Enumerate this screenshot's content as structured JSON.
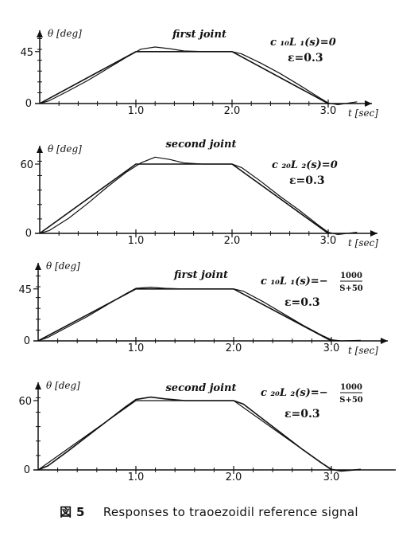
{
  "figure_caption": {
    "label": "図 5",
    "text": "Responses to traoezoidil reference signal"
  },
  "chart_data": [
    {
      "type": "line",
      "title": "first joint",
      "ylabel": "θ [deg]",
      "xlabel": "t [sec]",
      "annotation": {
        "lhs": "c ₁₀L ₁(s)=0",
        "numerator": "",
        "denominator": "",
        "epsilon": "ε=0.3"
      },
      "x_ticks": [
        "1.0",
        "2.0",
        "3.0"
      ],
      "y_ticks": [
        "0",
        "45"
      ],
      "xlim": [
        0,
        3.3
      ],
      "ylim": [
        0,
        60
      ],
      "ymax_tick": 45,
      "series": [
        {
          "values": [
            [
              0,
              0
            ],
            [
              1.0,
              45
            ],
            [
              2.0,
              45
            ],
            [
              3.0,
              0
            ]
          ]
        },
        {
          "values": [
            [
              0,
              0
            ],
            [
              0.1,
              2.5
            ],
            [
              0.3,
              11
            ],
            [
              0.5,
              20
            ],
            [
              0.7,
              30
            ],
            [
              0.9,
              40
            ],
            [
              1.05,
              47
            ],
            [
              1.2,
              49
            ],
            [
              1.35,
              47.5
            ],
            [
              1.5,
              45.5
            ],
            [
              1.7,
              45
            ],
            [
              2.0,
              45
            ],
            [
              2.1,
              43
            ],
            [
              2.3,
              35
            ],
            [
              2.5,
              26
            ],
            [
              2.7,
              16
            ],
            [
              2.9,
              5.5
            ],
            [
              3.0,
              0.5
            ],
            [
              3.1,
              -1
            ],
            [
              3.3,
              1.5
            ]
          ]
        }
      ]
    },
    {
      "type": "line",
      "title": "second joint",
      "ylabel": "θ [deg]",
      "xlabel": "t [sec]",
      "annotation": {
        "lhs": "c ₂₀L ₂(s)=0",
        "numerator": "",
        "denominator": "",
        "epsilon": "ε=0.3"
      },
      "x_ticks": [
        "1.0",
        "2.0",
        "3.0"
      ],
      "y_ticks": [
        "0",
        "60"
      ],
      "xlim": [
        0,
        3.3
      ],
      "ylim": [
        0,
        80
      ],
      "ymax_tick": 60,
      "series": [
        {
          "values": [
            [
              0,
              0
            ],
            [
              1.0,
              60
            ],
            [
              2.0,
              60
            ],
            [
              3.0,
              0
            ]
          ]
        },
        {
          "values": [
            [
              0,
              0
            ],
            [
              0.1,
              2.5
            ],
            [
              0.3,
              13
            ],
            [
              0.5,
              26
            ],
            [
              0.7,
              40
            ],
            [
              0.9,
              53
            ],
            [
              1.05,
              61
            ],
            [
              1.2,
              66
            ],
            [
              1.35,
              64
            ],
            [
              1.5,
              61
            ],
            [
              1.7,
              60
            ],
            [
              2.0,
              60
            ],
            [
              2.1,
              57
            ],
            [
              2.3,
              45
            ],
            [
              2.5,
              32
            ],
            [
              2.7,
              20
            ],
            [
              2.9,
              7
            ],
            [
              3.0,
              1
            ],
            [
              3.1,
              -1
            ],
            [
              3.3,
              1
            ]
          ]
        }
      ]
    },
    {
      "type": "line",
      "title": "first joint",
      "ylabel": "θ [deg]",
      "xlabel": "t [sec]",
      "annotation": {
        "lhs": "c ₁₀L ₁(s)=−",
        "numerator": "1000",
        "denominator": "S+50",
        "epsilon": "ε=0.3"
      },
      "x_ticks": [
        "1.0",
        "2.0",
        "3.0"
      ],
      "y_ticks": [
        "0",
        "45"
      ],
      "xlim": [
        0,
        3.3
      ],
      "ylim": [
        0,
        60
      ],
      "ymax_tick": 45,
      "series": [
        {
          "values": [
            [
              0,
              0
            ],
            [
              1.0,
              45
            ],
            [
              2.0,
              45
            ],
            [
              3.0,
              0
            ]
          ]
        },
        {
          "values": [
            [
              0,
              0
            ],
            [
              0.1,
              3
            ],
            [
              0.3,
              12
            ],
            [
              0.5,
              21
            ],
            [
              0.7,
              31
            ],
            [
              0.9,
              41
            ],
            [
              1.0,
              45.5
            ],
            [
              1.15,
              46.5
            ],
            [
              1.3,
              45.5
            ],
            [
              1.5,
              45
            ],
            [
              2.0,
              45
            ],
            [
              2.1,
              43
            ],
            [
              2.3,
              34
            ],
            [
              2.5,
              24
            ],
            [
              2.7,
              14
            ],
            [
              2.9,
              5
            ],
            [
              3.0,
              1
            ],
            [
              3.1,
              0
            ],
            [
              3.3,
              0.5
            ]
          ]
        }
      ]
    },
    {
      "type": "line",
      "title": "second joint",
      "ylabel": "θ [deg]",
      "xlabel": "",
      "annotation": {
        "lhs": "c ₂₀L ₂(s)=−",
        "numerator": "1000",
        "denominator": "S+50",
        "epsilon": "ε=0.3"
      },
      "x_ticks": [
        "1.0",
        "2.0",
        "3.0"
      ],
      "y_ticks": [
        "0",
        "60"
      ],
      "xlim": [
        0,
        3.3
      ],
      "ylim": [
        0,
        80
      ],
      "ymax_tick": 60,
      "series": [
        {
          "values": [
            [
              0,
              0
            ],
            [
              0.1,
              3.5
            ],
            [
              0.3,
              16
            ],
            [
              0.5,
              29
            ],
            [
              0.7,
              42
            ],
            [
              0.9,
              55
            ],
            [
              1.0,
              61
            ],
            [
              1.15,
              63
            ],
            [
              1.3,
              61.5
            ],
            [
              1.5,
              60
            ],
            [
              2.0,
              60
            ],
            [
              2.1,
              57
            ],
            [
              2.3,
              44
            ],
            [
              2.5,
              31
            ],
            [
              2.7,
              18
            ],
            [
              2.9,
              6
            ],
            [
              3.0,
              0.5
            ],
            [
              3.1,
              -1
            ],
            [
              3.3,
              0.5
            ]
          ]
        },
        {
          "values": [
            [
              0,
              0
            ],
            [
              1.0,
              60
            ],
            [
              2.0,
              60
            ],
            [
              3.0,
              0
            ]
          ]
        }
      ]
    }
  ]
}
